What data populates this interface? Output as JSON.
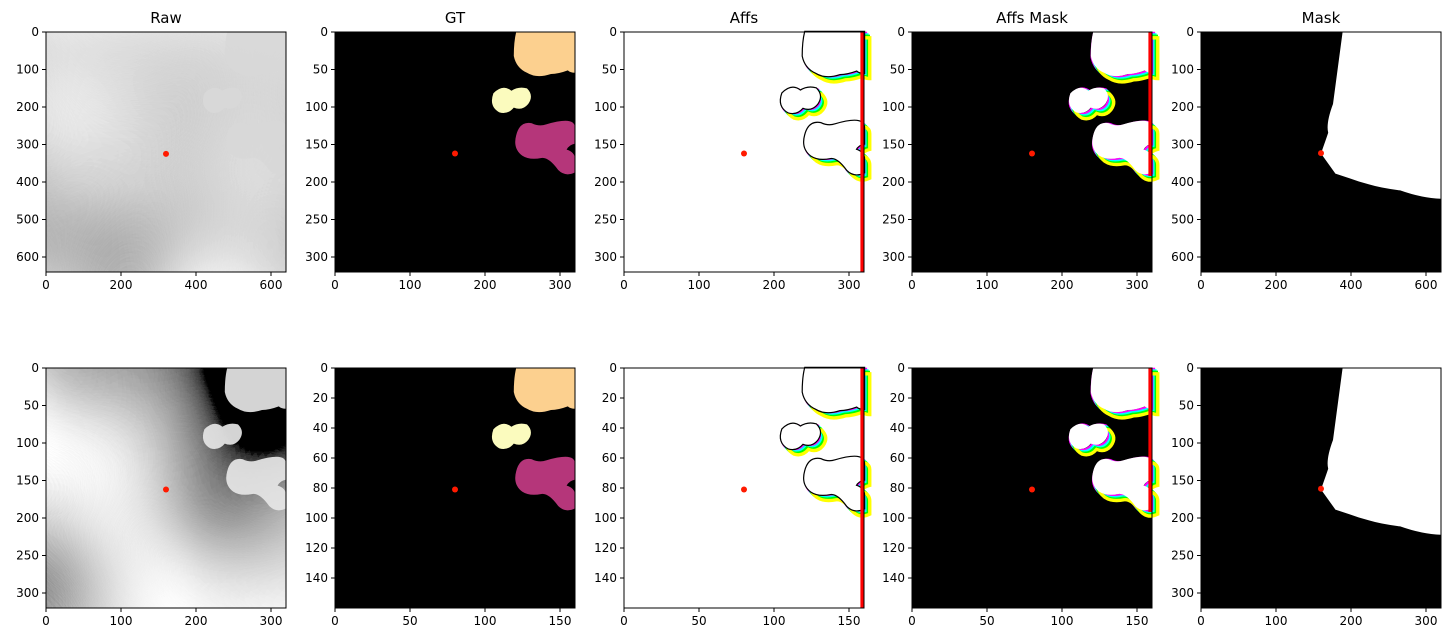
{
  "colors": {
    "panel_black": "#000000",
    "panel_white": "#ffffff",
    "marker_red": "#ff1a00",
    "gt_peach": "#fcd08f",
    "gt_cream": "#fbfbbe",
    "gt_magenta": "#b5367a",
    "noise_grey": "#8a8a8a",
    "aff_red": "#ff0000",
    "aff_green": "#00ff00",
    "aff_blue": "#0000ff",
    "aff_yellow": "#ffff00",
    "aff_magenta": "#ff00ff",
    "aff_cyan": "#00ffff"
  },
  "chart_data": [
    {
      "type": "heatmap",
      "title": "Raw",
      "row": 0,
      "col": 0,
      "size": 640,
      "xticks": [
        0,
        200,
        400,
        600
      ],
      "yticks": [
        0,
        100,
        200,
        300,
        400,
        500,
        600
      ],
      "marker": [
        320,
        325
      ]
    },
    {
      "type": "heatmap",
      "title": "GT",
      "row": 0,
      "col": 1,
      "size": 320,
      "xticks": [
        0,
        100,
        200,
        300
      ],
      "yticks": [
        0,
        50,
        100,
        150,
        200,
        250,
        300
      ],
      "marker": [
        160,
        162
      ]
    },
    {
      "type": "heatmap",
      "title": "Affs",
      "row": 0,
      "col": 2,
      "size": 320,
      "xticks": [
        0,
        100,
        200,
        300
      ],
      "yticks": [
        0,
        50,
        100,
        150,
        200,
        250,
        300
      ],
      "marker": [
        160,
        162
      ]
    },
    {
      "type": "heatmap",
      "title": "Affs Mask",
      "row": 0,
      "col": 3,
      "size": 320,
      "xticks": [
        0,
        100,
        200,
        300
      ],
      "yticks": [
        0,
        50,
        100,
        150,
        200,
        250,
        300
      ],
      "marker": [
        160,
        162
      ]
    },
    {
      "type": "heatmap",
      "title": "Mask",
      "row": 0,
      "col": 4,
      "size": 640,
      "xticks": [
        0,
        200,
        400,
        600
      ],
      "yticks": [
        0,
        100,
        200,
        300,
        400,
        500,
        600
      ],
      "marker": [
        320,
        323
      ]
    },
    {
      "type": "heatmap",
      "title": "",
      "row": 1,
      "col": 0,
      "size": 320,
      "xticks": [
        0,
        100,
        200,
        300
      ],
      "yticks": [
        0,
        50,
        100,
        150,
        200,
        250,
        300
      ],
      "marker": [
        160,
        162
      ]
    },
    {
      "type": "heatmap",
      "title": "",
      "row": 1,
      "col": 1,
      "size": 160,
      "xticks": [
        0,
        50,
        100,
        150
      ],
      "yticks": [
        0,
        20,
        40,
        60,
        80,
        100,
        120,
        140
      ],
      "marker": [
        80,
        81
      ]
    },
    {
      "type": "heatmap",
      "title": "",
      "row": 1,
      "col": 2,
      "size": 160,
      "xticks": [
        0,
        50,
        100,
        150
      ],
      "yticks": [
        0,
        20,
        40,
        60,
        80,
        100,
        120,
        140
      ],
      "marker": [
        80,
        81
      ]
    },
    {
      "type": "heatmap",
      "title": "",
      "row": 1,
      "col": 3,
      "size": 160,
      "xticks": [
        0,
        50,
        100,
        150
      ],
      "yticks": [
        0,
        20,
        40,
        60,
        80,
        100,
        120,
        140
      ],
      "marker": [
        80,
        81
      ]
    },
    {
      "type": "heatmap",
      "title": "",
      "row": 1,
      "col": 4,
      "size": 320,
      "xticks": [
        0,
        100,
        200,
        300
      ],
      "yticks": [
        0,
        50,
        100,
        150,
        200,
        250,
        300
      ],
      "marker": [
        160,
        161
      ]
    }
  ]
}
